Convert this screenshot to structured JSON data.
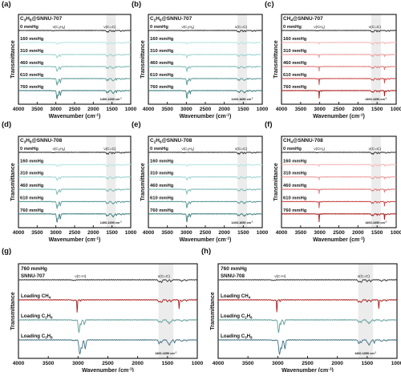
{
  "figure": {
    "letters": [
      "(a)",
      "(b)",
      "(c)",
      "(d)",
      "(e)",
      "(f)",
      "(g)",
      "(h)"
    ]
  },
  "chart_data": [
    {
      "type": "line",
      "panel": "a",
      "title_parts": [
        "C",
        "3",
        "H",
        "8",
        "@SNNU-707"
      ],
      "ylabel": "Transmittance",
      "xlabel_parts": [
        "Wavenumber (cm",
        "-1",
        ")"
      ],
      "xlim": [
        4000,
        1000
      ],
      "xticks": [
        4000,
        3500,
        3000,
        2500,
        2000,
        1500,
        1000
      ],
      "band_text": "1400-1650 cm",
      "band_sup": "-1",
      "series": [
        {
          "name": "0 mmHg",
          "color": "#333333",
          "gas": 0
        },
        {
          "name": "160 mmHg",
          "color": "#b7e6e3",
          "gas": 0.2
        },
        {
          "name": "310 mmHg",
          "color": "#9dd4d0",
          "gas": 0.4
        },
        {
          "name": "460 mmHg",
          "color": "#7fbab6",
          "gas": 0.6
        },
        {
          "name": "610 mmHg",
          "color": "#5b9c98",
          "gas": 0.8
        },
        {
          "name": "760 mmHg",
          "color": "#3e7e80",
          "gas": 1.0
        }
      ],
      "annotations": [
        {
          "parts": [
            "ν(C",
            "3",
            "H",
            "8",
            ")"
          ],
          "x": 2920
        },
        {
          "text": "ν(C=C)",
          "x": 1560
        }
      ]
    },
    {
      "type": "line",
      "panel": "b",
      "title_parts": [
        "C",
        "2",
        "H",
        "6",
        "@SNNU-707"
      ],
      "ylabel": "Transmittance",
      "xlabel_parts": [
        "Wavenumber (cm",
        "-1",
        ")"
      ],
      "xlim": [
        4000,
        1000
      ],
      "xticks": [
        4000,
        3500,
        3000,
        2500,
        2000,
        1500,
        1000
      ],
      "band_text": "1400-1650 cm",
      "band_sup": "-1",
      "series": [
        {
          "name": "0 mmHg",
          "color": "#333333",
          "gas": 0
        },
        {
          "name": "160 mmHg",
          "color": "#b7e6e3",
          "gas": 0.2
        },
        {
          "name": "310 mmHg",
          "color": "#9dd4d0",
          "gas": 0.4
        },
        {
          "name": "460 mmHg",
          "color": "#7fbab6",
          "gas": 0.6
        },
        {
          "name": "610 mmHg",
          "color": "#5b9c98",
          "gas": 0.8
        },
        {
          "name": "760 mmHg",
          "color": "#3e7e80",
          "gas": 1.0
        }
      ],
      "annotations": [
        {
          "parts": [
            "ν(C",
            "2",
            "H",
            "6",
            ")"
          ],
          "x": 2960
        },
        {
          "text": "ν(C=C)",
          "x": 1560
        }
      ]
    },
    {
      "type": "line",
      "panel": "c",
      "title_parts": [
        "CH",
        "4",
        "@SNNU-707"
      ],
      "ylabel": "Transmittance",
      "xlabel_parts": [
        "Wavenumber (cm",
        "-1",
        ")"
      ],
      "xlim": [
        4000,
        1000
      ],
      "xticks": [
        4000,
        3500,
        3000,
        2500,
        2000,
        1500,
        1000
      ],
      "band_text": "1400-1650 cm",
      "band_sup": "-1",
      "series": [
        {
          "name": "0 mmHg",
          "color": "#333333",
          "gas": 0
        },
        {
          "name": "160 mmHg",
          "color": "#f4b9b9",
          "gas": 0.2
        },
        {
          "name": "310 mmHg",
          "color": "#ec9c9c",
          "gas": 0.4
        },
        {
          "name": "460 mmHg",
          "color": "#e07a7a",
          "gas": 0.6
        },
        {
          "name": "610 mmHg",
          "color": "#cc4b4b",
          "gas": 0.8
        },
        {
          "name": "760 mmHg",
          "color": "#a81c1c",
          "gas": 1.0
        }
      ],
      "annotations": [
        {
          "parts": [
            "ν(CH",
            "4",
            ")"
          ],
          "x": 3010
        },
        {
          "text": "ν(C=C)",
          "x": 1560
        }
      ]
    },
    {
      "type": "line",
      "panel": "d",
      "title_parts": [
        "C",
        "3",
        "H",
        "8",
        "@SNNU-708"
      ],
      "ylabel": "Transmittance",
      "xlabel_parts": [
        "Wavenumber (cm",
        "-1",
        ")"
      ],
      "xlim": [
        4000,
        1000
      ],
      "xticks": [
        4000,
        3500,
        3000,
        2500,
        2000,
        1500,
        1000
      ],
      "band_text": "1400-1650 cm",
      "band_sup": "-1",
      "series": [
        {
          "name": "0 mmHg",
          "color": "#333333",
          "gas": 0
        },
        {
          "name": "160 mmHg",
          "color": "#b7e6e3",
          "gas": 0.2
        },
        {
          "name": "310 mmHg",
          "color": "#9dd4d0",
          "gas": 0.4
        },
        {
          "name": "460 mmHg",
          "color": "#7fbab6",
          "gas": 0.6
        },
        {
          "name": "610 mmHg",
          "color": "#5b9c98",
          "gas": 0.8
        },
        {
          "name": "760 mmHg",
          "color": "#3e7e80",
          "gas": 1.0
        }
      ],
      "annotations": [
        {
          "parts": [
            "ν(C",
            "3",
            "H",
            "8",
            ")"
          ],
          "x": 2920
        },
        {
          "text": "ν(C=C)",
          "x": 1560
        }
      ]
    },
    {
      "type": "line",
      "panel": "e",
      "title_parts": [
        "C",
        "2",
        "H",
        "6",
        "@SNNU-708"
      ],
      "ylabel": "Transmittance",
      "xlabel_parts": [
        "Wavenumber (cm",
        "-1",
        ")"
      ],
      "xlim": [
        4000,
        1000
      ],
      "xticks": [
        4000,
        3500,
        3000,
        2500,
        2000,
        1500,
        1000
      ],
      "band_text": "1400-1650 cm",
      "band_sup": "-1",
      "series": [
        {
          "name": "0 mmHg",
          "color": "#333333",
          "gas": 0
        },
        {
          "name": "160 mmHg",
          "color": "#b7e6e3",
          "gas": 0.2
        },
        {
          "name": "310 mmHg",
          "color": "#9dd4d0",
          "gas": 0.4
        },
        {
          "name": "460 mmHg",
          "color": "#7fbab6",
          "gas": 0.6
        },
        {
          "name": "610 mmHg",
          "color": "#5b9c98",
          "gas": 0.8
        },
        {
          "name": "760 mmHg",
          "color": "#3e7e80",
          "gas": 1.0
        }
      ],
      "annotations": [
        {
          "parts": [
            "ν(C",
            "2",
            "H",
            "6",
            ")"
          ],
          "x": 2960
        },
        {
          "text": "ν(C=C)",
          "x": 1560
        }
      ]
    },
    {
      "type": "line",
      "panel": "f",
      "title_parts": [
        "CH",
        "4",
        "@SNNU-708"
      ],
      "ylabel": "Transmittance",
      "xlabel_parts": [
        "Wavenumber (cm",
        "-1",
        ")"
      ],
      "xlim": [
        4000,
        1000
      ],
      "xticks": [
        4000,
        3500,
        3000,
        2500,
        2000,
        1500,
        1000
      ],
      "band_text": "1400-1650 cm",
      "band_sup": "-1",
      "series": [
        {
          "name": "0 mmHg",
          "color": "#333333",
          "gas": 0
        },
        {
          "name": "160 mmHg",
          "color": "#f4b9b9",
          "gas": 0.2
        },
        {
          "name": "310 mmHg",
          "color": "#ec9c9c",
          "gas": 0.4
        },
        {
          "name": "460 mmHg",
          "color": "#e07a7a",
          "gas": 0.6
        },
        {
          "name": "610 mmHg",
          "color": "#cc4b4b",
          "gas": 0.8
        },
        {
          "name": "760 mmHg",
          "color": "#a81c1c",
          "gas": 1.0
        }
      ],
      "annotations": [
        {
          "parts": [
            "ν(CH",
            "4",
            ")"
          ],
          "x": 3010
        },
        {
          "text": "ν(C=C)",
          "x": 1560
        }
      ]
    },
    {
      "type": "line",
      "panel": "g",
      "header": "760 mmHg",
      "ylabel": "Transmittance",
      "xlabel_parts": [
        "Wavenumber (cm",
        "-1",
        ")"
      ],
      "xlim": [
        4000,
        1000
      ],
      "xticks": [
        4000,
        3500,
        3000,
        2500,
        2000,
        1500,
        1000
      ],
      "band_text": "1400-1650 cm",
      "band_sup": "-1",
      "series": [
        {
          "name_parts": [
            "SNNU-707"
          ],
          "color": "#333333",
          "gas": "none"
        },
        {
          "name_parts": [
            "Loading CH",
            "4"
          ],
          "color": "#a81c1c",
          "gas": "ch4"
        },
        {
          "name_parts": [
            "Loading C",
            "2",
            "H",
            "6"
          ],
          "color": "#5b9c98",
          "gas": "c2h6"
        },
        {
          "name_parts": [
            "Loading C",
            "3",
            "H",
            "8"
          ],
          "color": "#3e6e80",
          "gas": "c3h8"
        }
      ],
      "annotations": [
        {
          "text": "ν(C-H)",
          "x": 2960
        },
        {
          "text": "ν(C=C)",
          "x": 1560
        }
      ]
    },
    {
      "type": "line",
      "panel": "h",
      "header": "760 mmHg",
      "ylabel": "Transmittance",
      "xlabel_parts": [
        "Wavenumber (cm",
        "-1",
        ")"
      ],
      "xlim": [
        4000,
        1000
      ],
      "xticks": [
        4000,
        3500,
        3000,
        2500,
        2000,
        1500,
        1000
      ],
      "band_text": "1400-1650 cm",
      "band_sup": "-1",
      "series": [
        {
          "name_parts": [
            "SNNU-708"
          ],
          "color": "#333333",
          "gas": "none"
        },
        {
          "name_parts": [
            "Loading CH",
            "4"
          ],
          "color": "#a81c1c",
          "gas": "ch4"
        },
        {
          "name_parts": [
            "Loading C",
            "2",
            "H",
            "6"
          ],
          "color": "#5b9c98",
          "gas": "c2h6"
        },
        {
          "name_parts": [
            "Loading C",
            "3",
            "H",
            "8"
          ],
          "color": "#3e6e80",
          "gas": "c3h8"
        }
      ],
      "annotations": [
        {
          "text": "ν(C-H)",
          "x": 2960
        },
        {
          "text": "ν(C=C)",
          "x": 1560
        }
      ]
    }
  ]
}
